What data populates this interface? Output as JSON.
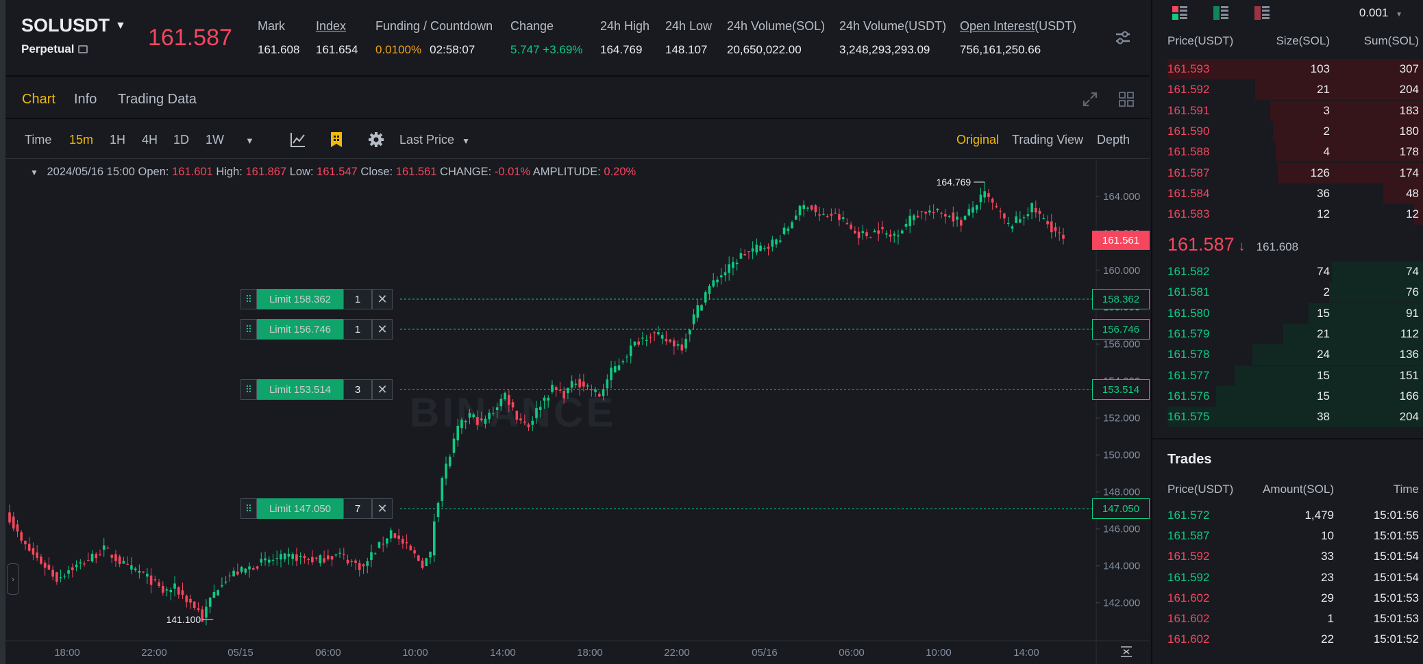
{
  "header": {
    "symbol": "SOLUSDT",
    "contract_type": "Perpetual",
    "last_price": "161.587",
    "stats": [
      {
        "label": "Mark",
        "value": "161.608",
        "underline": false,
        "color": "#eaecef"
      },
      {
        "label": "Index",
        "value": "161.654",
        "underline": true,
        "color": "#eaecef"
      },
      {
        "label": "Funding / Countdown",
        "value": "0.0100%",
        "value2": "02:58:07",
        "underline": false,
        "color": "#f0a31a"
      },
      {
        "label": "Change",
        "value": "5.747 +3.69%",
        "underline": false,
        "color": "#0ecb81"
      },
      {
        "label": "24h High",
        "value": "164.769",
        "underline": false,
        "color": "#eaecef"
      },
      {
        "label": "24h Low",
        "value": "148.107",
        "underline": false,
        "color": "#eaecef"
      },
      {
        "label": "24h Volume(SOL)",
        "value": "20,650,022.00",
        "underline": false,
        "color": "#eaecef"
      },
      {
        "label": "24h Volume(USDT)",
        "value": "3,248,293,293.09",
        "underline": false,
        "color": "#eaecef"
      },
      {
        "label": "Open Interest",
        "label_suffix": "(USDT)",
        "value": "756,161,250.66",
        "underline": true,
        "color": "#eaecef"
      }
    ]
  },
  "tabs": [
    "Chart",
    "Info",
    "Trading Data"
  ],
  "active_tab": "Chart",
  "toolbar": {
    "intervals": [
      "Time",
      "15m",
      "1H",
      "4H",
      "1D",
      "1W"
    ],
    "active_interval": "15m",
    "price_type": "Last Price",
    "views": [
      "Original",
      "Trading View",
      "Depth"
    ],
    "active_view": "Original"
  },
  "ohlc": {
    "date": "2024/05/16 15:00",
    "open_label": "Open:",
    "open": "161.601",
    "high_label": "High:",
    "high": "161.867",
    "low_label": "Low:",
    "low": "161.547",
    "close_label": "Close:",
    "close": "161.561",
    "change_label": "CHANGE:",
    "change": "-0.01%",
    "amp_label": "AMPLITUDE:",
    "amplitude": "0.20%"
  },
  "chart_data": {
    "type": "candlestick",
    "x_ticks": [
      "18:00",
      "22:00",
      "05/15",
      "06:00",
      "10:00",
      "14:00",
      "18:00",
      "22:00",
      "05/16",
      "06:00",
      "10:00",
      "14:00"
    ],
    "y_ticks": [
      "164.000",
      "162.000",
      "160.000",
      "158.000",
      "156.000",
      "154.000",
      "152.000",
      "150.000",
      "148.000",
      "146.000",
      "144.000",
      "142.000"
    ],
    "ylim": [
      140.5,
      164.8
    ],
    "last_price_label": "161.561",
    "high_marker": "164.769",
    "low_marker": "141.100",
    "watermark": "BINANCE",
    "close_path": [
      [
        0,
        146.6
      ],
      [
        3,
        145.3
      ],
      [
        6,
        144.6
      ],
      [
        9,
        144.0
      ],
      [
        12,
        143.3
      ],
      [
        15,
        143.8
      ],
      [
        18,
        144.1
      ],
      [
        21,
        144.5
      ],
      [
        24,
        144.9
      ],
      [
        27,
        144.4
      ],
      [
        30,
        143.9
      ],
      [
        33,
        143.7
      ],
      [
        36,
        143.2
      ],
      [
        39,
        142.6
      ],
      [
        42,
        142.8
      ],
      [
        45,
        142.2
      ],
      [
        48,
        141.6
      ],
      [
        49,
        141.1
      ],
      [
        51,
        142.2
      ],
      [
        54,
        143.2
      ],
      [
        57,
        143.6
      ],
      [
        60,
        143.8
      ],
      [
        63,
        144.1
      ],
      [
        66,
        144.3
      ],
      [
        69,
        144.4
      ],
      [
        72,
        144.5
      ],
      [
        75,
        144.4
      ],
      [
        78,
        144.3
      ],
      [
        81,
        144.5
      ],
      [
        84,
        144.6
      ],
      [
        87,
        144.2
      ],
      [
        90,
        143.9
      ],
      [
        92,
        144.6
      ],
      [
        95,
        145.3
      ],
      [
        97,
        145.9
      ],
      [
        99,
        145.4
      ],
      [
        102,
        144.8
      ],
      [
        105,
        144.1
      ],
      [
        107,
        144.6
      ],
      [
        108,
        146.5
      ],
      [
        110,
        148.8
      ],
      [
        112,
        150.0
      ],
      [
        114,
        151.4
      ],
      [
        117,
        152.2
      ],
      [
        120,
        151.7
      ],
      [
        123,
        152.4
      ],
      [
        126,
        153.3
      ],
      [
        129,
        152.1
      ],
      [
        132,
        151.6
      ],
      [
        135,
        152.8
      ],
      [
        138,
        153.6
      ],
      [
        141,
        153.3
      ],
      [
        144,
        154.0
      ],
      [
        147,
        153.7
      ],
      [
        150,
        153.2
      ],
      [
        153,
        154.5
      ],
      [
        156,
        155.2
      ],
      [
        158,
        155.8
      ],
      [
        160,
        156.2
      ],
      [
        163,
        156.6
      ],
      [
        165,
        156.4
      ],
      [
        168,
        156.1
      ],
      [
        171,
        155.9
      ],
      [
        174,
        157.5
      ],
      [
        177,
        158.8
      ],
      [
        180,
        159.6
      ],
      [
        183,
        160.1
      ],
      [
        186,
        160.8
      ],
      [
        189,
        161.1
      ],
      [
        192,
        161.3
      ],
      [
        195,
        161.6
      ],
      [
        198,
        162.3
      ],
      [
        200,
        163.1
      ],
      [
        203,
        163.6
      ],
      [
        206,
        162.9
      ],
      [
        209,
        163.0
      ],
      [
        212,
        162.7
      ],
      [
        215,
        162.0
      ],
      [
        218,
        161.9
      ],
      [
        221,
        162.2
      ],
      [
        224,
        161.8
      ],
      [
        227,
        162.3
      ],
      [
        230,
        163.0
      ],
      [
        233,
        163.2
      ],
      [
        236,
        163.1
      ],
      [
        239,
        163.0
      ],
      [
        242,
        162.6
      ],
      [
        245,
        163.4
      ],
      [
        248,
        164.1
      ],
      [
        251,
        163.3
      ],
      [
        254,
        162.4
      ],
      [
        257,
        162.8
      ],
      [
        260,
        163.4
      ],
      [
        263,
        162.7
      ],
      [
        266,
        162.1
      ],
      [
        268,
        161.6
      ]
    ],
    "limit_orders": [
      {
        "label": "Limit 158.362",
        "qty": "1",
        "price": 158.362,
        "price_label": "158.362"
      },
      {
        "label": "Limit 156.746",
        "qty": "1",
        "price": 156.746,
        "price_label": "156.746"
      },
      {
        "label": "Limit 153.514",
        "qty": "3",
        "price": 153.514,
        "price_label": "153.514"
      },
      {
        "label": "Limit 147.050",
        "qty": "7",
        "price": 147.05,
        "price_label": "147.050"
      }
    ]
  },
  "orderbook": {
    "precision": "0.001",
    "columns": [
      "Price(USDT)",
      "Size(SOL)",
      "Sum(SOL)"
    ],
    "asks": [
      {
        "price": "161.593",
        "size": "103",
        "sum": "307",
        "depth": 1.0
      },
      {
        "price": "161.592",
        "size": "21",
        "sum": "204",
        "depth": 0.66
      },
      {
        "price": "161.591",
        "size": "3",
        "sum": "183",
        "depth": 0.6
      },
      {
        "price": "161.590",
        "size": "2",
        "sum": "180",
        "depth": 0.59
      },
      {
        "price": "161.588",
        "size": "4",
        "sum": "178",
        "depth": 0.58
      },
      {
        "price": "161.587",
        "size": "126",
        "sum": "174",
        "depth": 0.57
      },
      {
        "price": "161.584",
        "size": "36",
        "sum": "48",
        "depth": 0.16
      },
      {
        "price": "161.583",
        "size": "12",
        "sum": "12",
        "depth": 0.04
      }
    ],
    "mid": {
      "price": "161.587",
      "arrow": "↓",
      "mark": "161.608"
    },
    "bids": [
      {
        "price": "161.582",
        "size": "74",
        "sum": "74",
        "depth": 0.36
      },
      {
        "price": "161.581",
        "size": "2",
        "sum": "76",
        "depth": 0.37
      },
      {
        "price": "161.580",
        "size": "15",
        "sum": "91",
        "depth": 0.45
      },
      {
        "price": "161.579",
        "size": "21",
        "sum": "112",
        "depth": 0.55
      },
      {
        "price": "161.578",
        "size": "24",
        "sum": "136",
        "depth": 0.67
      },
      {
        "price": "161.577",
        "size": "15",
        "sum": "151",
        "depth": 0.74
      },
      {
        "price": "161.576",
        "size": "15",
        "sum": "166",
        "depth": 0.81
      },
      {
        "price": "161.575",
        "size": "38",
        "sum": "204",
        "depth": 1.0
      }
    ]
  },
  "trades": {
    "title": "Trades",
    "columns": [
      "Price(USDT)",
      "Amount(SOL)",
      "Time"
    ],
    "rows": [
      {
        "price": "161.572",
        "amount": "1,479",
        "time": "15:01:56",
        "side": "buy"
      },
      {
        "price": "161.587",
        "amount": "10",
        "time": "15:01:55",
        "side": "buy"
      },
      {
        "price": "161.592",
        "amount": "33",
        "time": "15:01:54",
        "side": "sell"
      },
      {
        "price": "161.592",
        "amount": "23",
        "time": "15:01:54",
        "side": "buy"
      },
      {
        "price": "161.602",
        "amount": "29",
        "time": "15:01:53",
        "side": "sell"
      },
      {
        "price": "161.602",
        "amount": "1",
        "time": "15:01:53",
        "side": "sell"
      },
      {
        "price": "161.602",
        "amount": "22",
        "time": "15:01:52",
        "side": "sell"
      }
    ]
  },
  "colors": {
    "up": "#0ecb81",
    "down": "#f6465d",
    "accent": "#f0b90b"
  }
}
